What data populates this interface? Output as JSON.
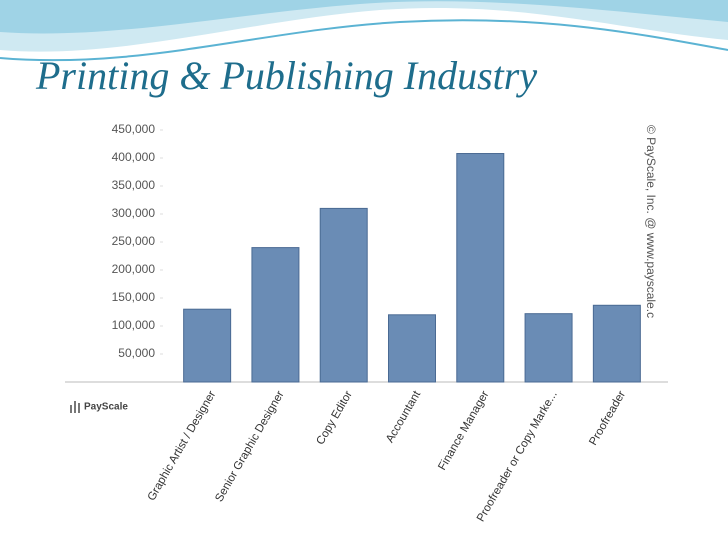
{
  "chart_data": {
    "type": "bar",
    "title": "Printing & Publishing Industry",
    "categories": [
      "Graphic Artist / Designer",
      "Senior Graphic Designer",
      "Copy Editor",
      "Accountant",
      "Finance Manager",
      "Proofreader or Copy Marke...",
      "Proofreader"
    ],
    "values": [
      130000,
      240000,
      310000,
      120000,
      408000,
      122000,
      137000
    ],
    "color": "#6a8cb5",
    "ylim": [
      0,
      450000
    ],
    "yticks": [
      {
        "value": 50000,
        "label": "50,000"
      },
      {
        "value": 100000,
        "label": "100,000"
      },
      {
        "value": 150000,
        "label": "150,000"
      },
      {
        "value": 200000,
        "label": "200,000"
      },
      {
        "value": 250000,
        "label": "250,000"
      },
      {
        "value": 300000,
        "label": "300,000"
      },
      {
        "value": 350000,
        "label": "350,000"
      },
      {
        "value": 400000,
        "label": "400,000"
      },
      {
        "value": 450000,
        "label": "450,000"
      }
    ],
    "watermark": "© PayScale, Inc. @ www.payscale.c",
    "logo_text": "PayScale"
  }
}
